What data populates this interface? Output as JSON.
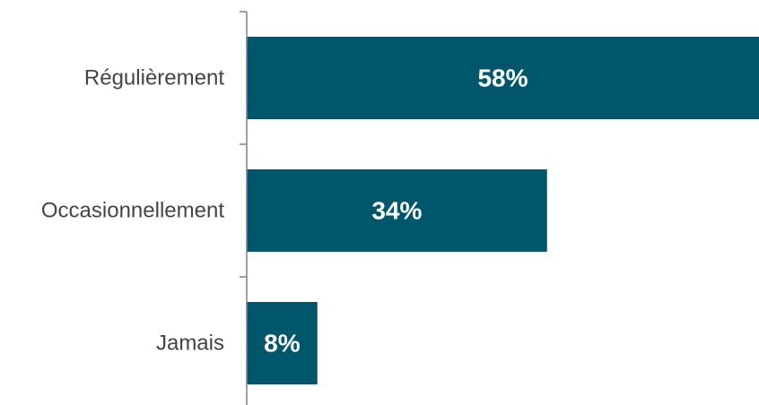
{
  "chart_data": {
    "type": "bar",
    "orientation": "horizontal",
    "categories": [
      "Régulièrement",
      "Occasionnellement",
      "Jamais"
    ],
    "values": [
      58,
      34,
      8
    ],
    "value_labels": [
      "58%",
      "34%",
      "8%"
    ],
    "title": "",
    "xlabel": "",
    "ylabel": "",
    "xlim": [
      0,
      58
    ],
    "grid": false,
    "legend": "none"
  },
  "colors": {
    "bar": "#00566b",
    "axis": "#808080",
    "category_text": "#444444",
    "value_text": "#ffffff"
  }
}
